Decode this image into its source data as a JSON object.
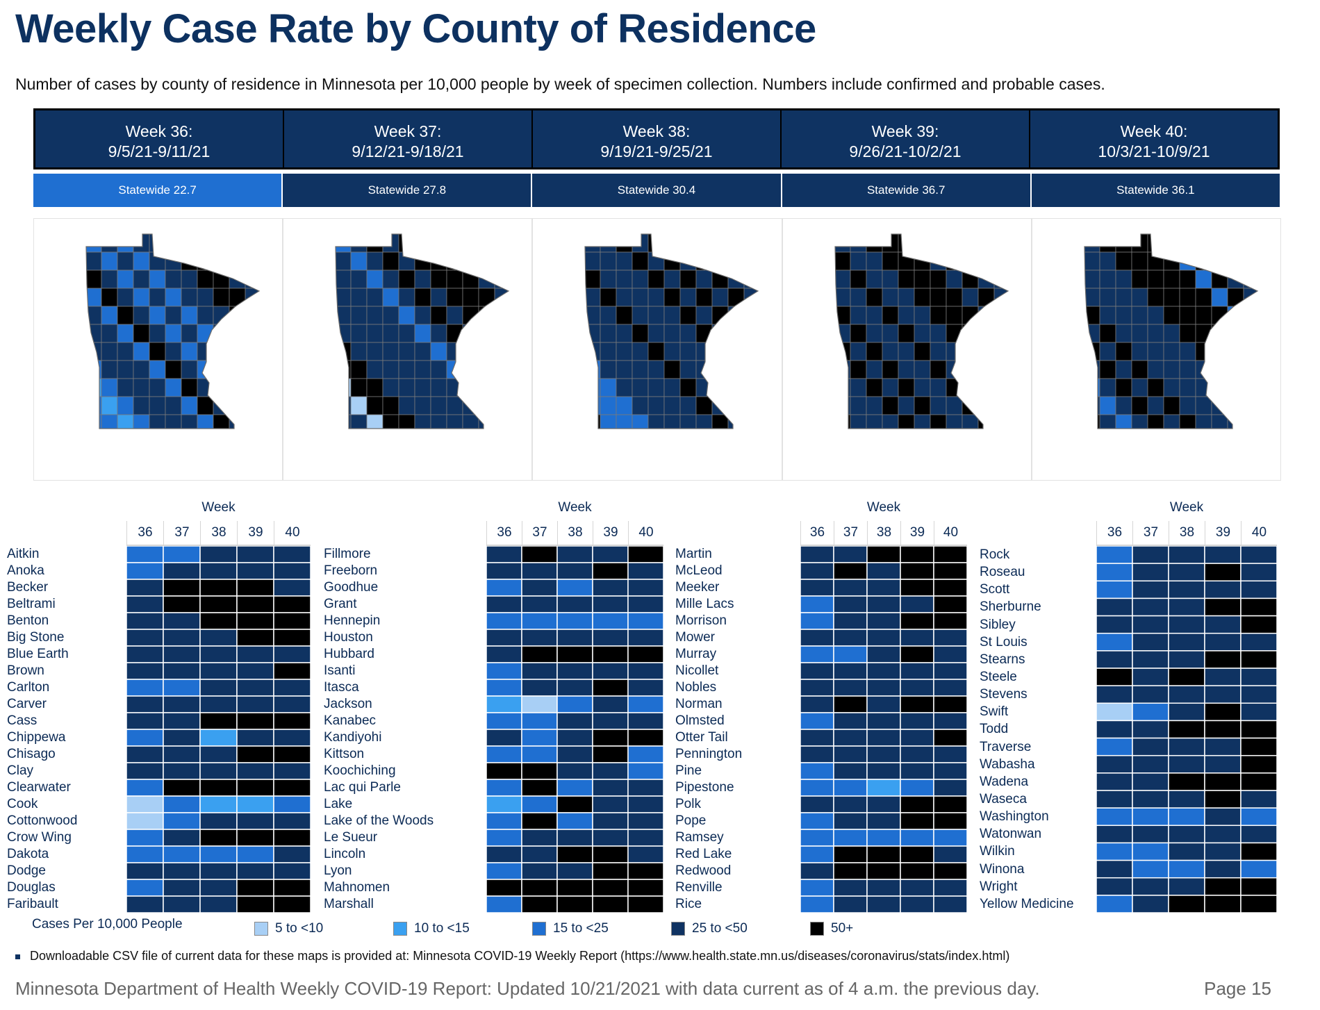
{
  "title": "Weekly Case Rate by County of Residence",
  "subtitle": "Number of cases by county of residence in Minnesota per 10,000 people by week of specimen collection. Numbers include confirmed and probable cases.",
  "weeks": [
    {
      "label": "Week 36:",
      "range": "9/5/21-9/11/21",
      "statewide": "Statewide 22.7",
      "color": "#1f6fd1"
    },
    {
      "label": "Week 37:",
      "range": "9/12/21-9/18/21",
      "statewide": "Statewide 27.8",
      "color": "#0f3362"
    },
    {
      "label": "Week 38:",
      "range": "9/19/21-9/25/21",
      "statewide": "Statewide 30.4",
      "color": "#0f3362"
    },
    {
      "label": "Week 39:",
      "range": "9/26/21-10/2/21",
      "statewide": "Statewide 36.7",
      "color": "#0f3362"
    },
    {
      "label": "Week 40:",
      "range": "10/3/21-10/9/21",
      "statewide": "Statewide 36.1",
      "color": "#0f3362"
    }
  ],
  "week_axis_label": "Week",
  "week_numbers": [
    "36",
    "37",
    "38",
    "39",
    "40"
  ],
  "palette": {
    "c1": "#a8cff5",
    "c2": "#3aa0f0",
    "c3": "#1f6fd1",
    "c4": "#0f3362",
    "c5": "#000000"
  },
  "legend": {
    "title": "Cases Per 10,000 People",
    "items": [
      {
        "label": "5 to <10",
        "cls": "c1"
      },
      {
        "label": "10 to <15",
        "cls": "c2"
      },
      {
        "label": "15  to <25",
        "cls": "c3"
      },
      {
        "label": "25 to <50",
        "cls": "c4"
      },
      {
        "label": "50+",
        "cls": "c5"
      }
    ]
  },
  "note": "Downloadable CSV file of current data for these maps  is provided at: Minnesota COVID-19 Weekly Report  (https://www.health.state.mn.us/diseases/coronavirus/stats/index.html)",
  "footer": "Minnesota Department of Health Weekly COVID-19 Report: Updated 10/21/2021 with data current as of 4 a.m. the previous day.",
  "page": "Page 15",
  "chart_data": {
    "type": "heatmap",
    "title": "Weekly Case Rate by County of Residence",
    "x": [
      "36",
      "37",
      "38",
      "39",
      "40"
    ],
    "xlabel": "Week",
    "value_scale": "category index: 1=5 to <10, 2=10 to <15, 3=15 to <25, 4=25 to <50, 5=50+",
    "columns": [
      [
        {
          "county": "Aitkin",
          "v": [
            3,
            3,
            4,
            4,
            4
          ]
        },
        {
          "county": "Anoka",
          "v": [
            3,
            4,
            4,
            4,
            4
          ]
        },
        {
          "county": "Becker",
          "v": [
            4,
            5,
            5,
            5,
            4
          ]
        },
        {
          "county": "Beltrami",
          "v": [
            4,
            5,
            5,
            5,
            5
          ]
        },
        {
          "county": "Benton",
          "v": [
            4,
            4,
            5,
            5,
            5
          ]
        },
        {
          "county": "Big Stone",
          "v": [
            4,
            4,
            4,
            5,
            5
          ]
        },
        {
          "county": "Blue Earth",
          "v": [
            4,
            4,
            4,
            4,
            4
          ]
        },
        {
          "county": "Brown",
          "v": [
            4,
            4,
            4,
            4,
            5
          ]
        },
        {
          "county": "Carlton",
          "v": [
            3,
            3,
            4,
            4,
            4
          ]
        },
        {
          "county": "Carver",
          "v": [
            4,
            4,
            4,
            4,
            4
          ]
        },
        {
          "county": "Cass",
          "v": [
            4,
            4,
            5,
            5,
            5
          ]
        },
        {
          "county": "Chippewa",
          "v": [
            3,
            4,
            2,
            4,
            4
          ]
        },
        {
          "county": "Chisago",
          "v": [
            4,
            4,
            4,
            5,
            5
          ]
        },
        {
          "county": "Clay",
          "v": [
            4,
            4,
            4,
            4,
            4
          ]
        },
        {
          "county": "Clearwater",
          "v": [
            3,
            5,
            5,
            5,
            5
          ]
        },
        {
          "county": "Cook",
          "v": [
            1,
            3,
            2,
            2,
            3
          ]
        },
        {
          "county": "Cottonwood",
          "v": [
            1,
            3,
            4,
            4,
            4
          ]
        },
        {
          "county": "Crow Wing",
          "v": [
            3,
            4,
            5,
            5,
            5
          ]
        },
        {
          "county": "Dakota",
          "v": [
            3,
            3,
            3,
            3,
            4
          ]
        },
        {
          "county": "Dodge",
          "v": [
            4,
            4,
            4,
            4,
            4
          ]
        },
        {
          "county": "Douglas",
          "v": [
            3,
            4,
            4,
            5,
            5
          ]
        },
        {
          "county": "Faribault",
          "v": [
            4,
            4,
            4,
            5,
            5
          ]
        }
      ],
      [
        {
          "county": "Fillmore",
          "v": [
            4,
            5,
            4,
            4,
            5
          ]
        },
        {
          "county": "Freeborn",
          "v": [
            4,
            4,
            4,
            5,
            4
          ]
        },
        {
          "county": "Goodhue",
          "v": [
            3,
            4,
            3,
            4,
            4
          ]
        },
        {
          "county": "Grant",
          "v": [
            4,
            4,
            4,
            4,
            4
          ]
        },
        {
          "county": "Hennepin",
          "v": [
            3,
            3,
            3,
            3,
            3
          ]
        },
        {
          "county": "Houston",
          "v": [
            4,
            4,
            4,
            4,
            4
          ]
        },
        {
          "county": "Hubbard",
          "v": [
            4,
            5,
            5,
            5,
            5
          ]
        },
        {
          "county": "Isanti",
          "v": [
            3,
            4,
            4,
            4,
            4
          ]
        },
        {
          "county": "Itasca",
          "v": [
            3,
            4,
            4,
            5,
            4
          ]
        },
        {
          "county": "Jackson",
          "v": [
            2,
            1,
            3,
            4,
            3
          ]
        },
        {
          "county": "Kanabec",
          "v": [
            3,
            3,
            4,
            4,
            4
          ]
        },
        {
          "county": "Kandiyohi",
          "v": [
            4,
            3,
            4,
            5,
            5
          ]
        },
        {
          "county": "Kittson",
          "v": [
            3,
            3,
            4,
            5,
            3
          ]
        },
        {
          "county": "Koochiching",
          "v": [
            5,
            5,
            4,
            4,
            3
          ]
        },
        {
          "county": "Lac qui Parle",
          "v": [
            3,
            5,
            3,
            4,
            4
          ]
        },
        {
          "county": "Lake",
          "v": [
            2,
            3,
            5,
            4,
            4
          ]
        },
        {
          "county": "Lake of the Woods",
          "v": [
            3,
            5,
            3,
            4,
            4
          ]
        },
        {
          "county": "Le Sueur",
          "v": [
            3,
            4,
            4,
            4,
            4
          ]
        },
        {
          "county": "Lincoln",
          "v": [
            4,
            4,
            5,
            5,
            4
          ]
        },
        {
          "county": "Lyon",
          "v": [
            3,
            4,
            4,
            5,
            5
          ]
        },
        {
          "county": "Mahnomen",
          "v": [
            5,
            5,
            5,
            5,
            5
          ]
        },
        {
          "county": "Marshall",
          "v": [
            3,
            5,
            5,
            5,
            5
          ]
        }
      ],
      [
        {
          "county": "Martin",
          "v": [
            4,
            4,
            5,
            5,
            5
          ]
        },
        {
          "county": "McLeod",
          "v": [
            4,
            5,
            4,
            5,
            5
          ]
        },
        {
          "county": "Meeker",
          "v": [
            4,
            4,
            4,
            5,
            5
          ]
        },
        {
          "county": "Mille Lacs",
          "v": [
            3,
            4,
            4,
            4,
            5
          ]
        },
        {
          "county": "Morrison",
          "v": [
            3,
            4,
            4,
            5,
            5
          ]
        },
        {
          "county": "Mower",
          "v": [
            4,
            4,
            4,
            4,
            4
          ]
        },
        {
          "county": "Murray",
          "v": [
            3,
            3,
            4,
            5,
            4
          ]
        },
        {
          "county": "Nicollet",
          "v": [
            4,
            4,
            4,
            4,
            4
          ]
        },
        {
          "county": "Nobles",
          "v": [
            4,
            4,
            4,
            4,
            4
          ]
        },
        {
          "county": "Norman",
          "v": [
            4,
            5,
            4,
            5,
            5
          ]
        },
        {
          "county": "Olmsted",
          "v": [
            3,
            4,
            4,
            4,
            4
          ]
        },
        {
          "county": "Otter Tail",
          "v": [
            4,
            4,
            4,
            4,
            5
          ]
        },
        {
          "county": "Pennington",
          "v": [
            4,
            4,
            4,
            4,
            4
          ]
        },
        {
          "county": "Pine",
          "v": [
            3,
            4,
            4,
            4,
            4
          ]
        },
        {
          "county": "Pipestone",
          "v": [
            3,
            3,
            2,
            3,
            4
          ]
        },
        {
          "county": "Polk",
          "v": [
            4,
            4,
            4,
            5,
            5
          ]
        },
        {
          "county": "Pope",
          "v": [
            3,
            4,
            4,
            5,
            5
          ]
        },
        {
          "county": "Ramsey",
          "v": [
            3,
            3,
            3,
            3,
            3
          ]
        },
        {
          "county": "Red Lake",
          "v": [
            3,
            5,
            5,
            5,
            4
          ]
        },
        {
          "county": "Redwood",
          "v": [
            4,
            5,
            5,
            5,
            5
          ]
        },
        {
          "county": "Renville",
          "v": [
            3,
            4,
            4,
            4,
            4
          ]
        },
        {
          "county": "Rice",
          "v": [
            3,
            4,
            4,
            4,
            4
          ]
        }
      ],
      [
        {
          "county": "Rock",
          "v": [
            3,
            4,
            4,
            4,
            4
          ]
        },
        {
          "county": "Roseau",
          "v": [
            3,
            4,
            4,
            5,
            4
          ]
        },
        {
          "county": "Scott",
          "v": [
            3,
            4,
            4,
            4,
            4
          ]
        },
        {
          "county": "Sherburne",
          "v": [
            4,
            4,
            4,
            5,
            5
          ]
        },
        {
          "county": "Sibley",
          "v": [
            4,
            4,
            4,
            4,
            5
          ]
        },
        {
          "county": "St Louis",
          "v": [
            3,
            4,
            4,
            4,
            4
          ]
        },
        {
          "county": "Stearns",
          "v": [
            4,
            4,
            4,
            5,
            5
          ]
        },
        {
          "county": "Steele",
          "v": [
            5,
            4,
            5,
            4,
            4
          ]
        },
        {
          "county": "Stevens",
          "v": [
            4,
            4,
            4,
            4,
            4
          ]
        },
        {
          "county": "Swift",
          "v": [
            1,
            3,
            4,
            5,
            4
          ]
        },
        {
          "county": "Todd",
          "v": [
            4,
            4,
            5,
            5,
            5
          ]
        },
        {
          "county": "Traverse",
          "v": [
            3,
            4,
            4,
            4,
            5
          ]
        },
        {
          "county": "Wabasha",
          "v": [
            4,
            4,
            4,
            4,
            5
          ]
        },
        {
          "county": "Wadena",
          "v": [
            4,
            4,
            5,
            5,
            5
          ]
        },
        {
          "county": "Waseca",
          "v": [
            4,
            4,
            4,
            5,
            4
          ]
        },
        {
          "county": "Washington",
          "v": [
            3,
            3,
            3,
            4,
            3
          ]
        },
        {
          "county": "Watonwan",
          "v": [
            4,
            4,
            4,
            4,
            4
          ]
        },
        {
          "county": "Wilkin",
          "v": [
            3,
            3,
            4,
            4,
            5
          ]
        },
        {
          "county": "Winona",
          "v": [
            4,
            3,
            3,
            4,
            3
          ]
        },
        {
          "county": "Wright",
          "v": [
            4,
            4,
            4,
            5,
            5
          ]
        },
        {
          "county": "Yellow Medicine",
          "v": [
            3,
            4,
            5,
            5,
            5
          ]
        }
      ]
    ]
  }
}
